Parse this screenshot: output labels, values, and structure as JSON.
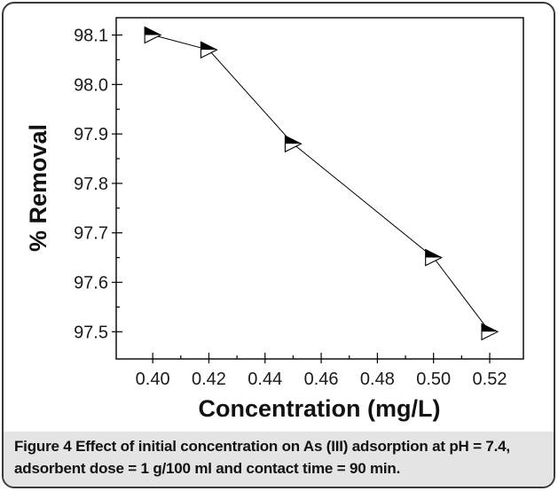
{
  "chart_data": {
    "type": "line",
    "x": [
      0.4,
      0.42,
      0.45,
      0.5,
      0.52
    ],
    "series": [
      {
        "values": [
          98.1,
          98.07,
          97.88,
          97.65,
          97.5
        ]
      }
    ],
    "xlabel": "Concentration (mg/L)",
    "ylabel": "% Removal",
    "xlim": [
      0.387,
      0.532
    ],
    "ylim": [
      97.445,
      98.135
    ],
    "x_ticks": [
      "0.40",
      "0.42",
      "0.44",
      "0.46",
      "0.48",
      "0.50",
      "0.52"
    ],
    "y_ticks": [
      "97.5",
      "97.6",
      "97.7",
      "97.8",
      "97.9",
      "98.0",
      "98.1"
    ],
    "marker": "right-pointing half-filled triangle",
    "grid": false,
    "line_color": "#000000"
  },
  "caption": {
    "label": "Figure 4",
    "text": "Effect of initial concentration on As (III) adsorption at pH = 7.4, adsorbent dose = 1 g/100 ml and contact time = 90 min."
  }
}
